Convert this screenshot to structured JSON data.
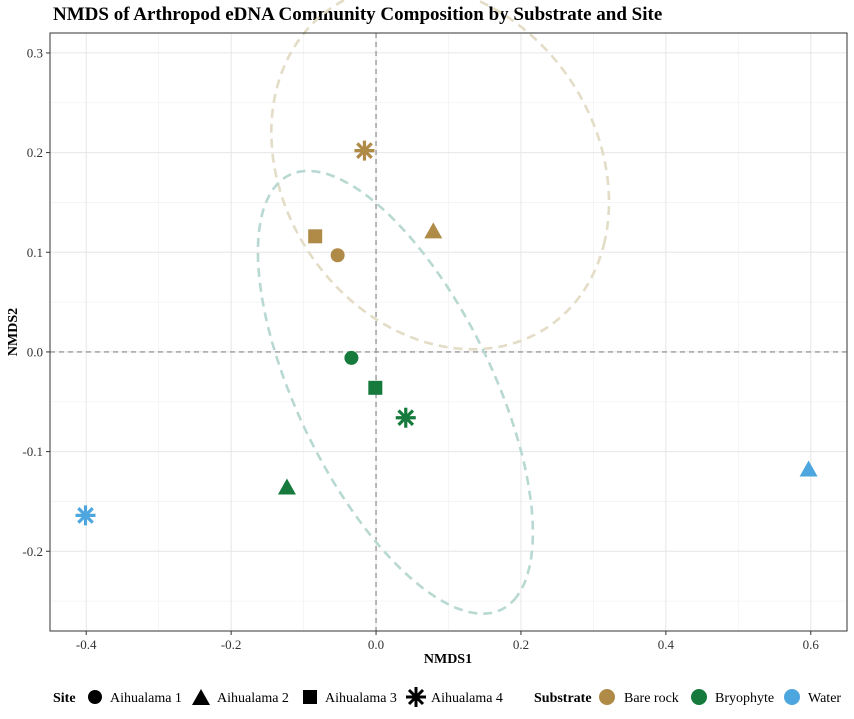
{
  "chart_data": {
    "type": "scatter",
    "title": "NMDS of Arthropod eDNA Community Composition by Substrate and Site",
    "xlabel": "NMDS1",
    "ylabel": "NMDS2",
    "xlim": [
      -0.45,
      0.65
    ],
    "ylim": [
      -0.28,
      0.32
    ],
    "x_ticks": [
      -0.4,
      -0.2,
      0.0,
      0.2,
      0.4,
      0.6
    ],
    "x_tick_labels": [
      "-0.4",
      "-0.2",
      "0.0",
      "0.2",
      "0.4",
      "0.6"
    ],
    "y_ticks": [
      -0.2,
      -0.1,
      0.0,
      0.1,
      0.2,
      0.3
    ],
    "y_tick_labels": [
      "-0.2",
      "-0.1",
      "0.0",
      "0.1",
      "0.2",
      "0.3"
    ],
    "grid": true,
    "reference_lines": {
      "x": 0.0,
      "y": 0.0
    },
    "legend_position": "bottom",
    "site_legend": {
      "title": "Site",
      "items": [
        {
          "label": "Aihualama 1",
          "shape": "circle"
        },
        {
          "label": "Aihualama 2",
          "shape": "triangle"
        },
        {
          "label": "Aihualama 3",
          "shape": "square"
        },
        {
          "label": "Aihualama 4",
          "shape": "asterisk"
        }
      ]
    },
    "substrate_legend": {
      "title": "Substrate",
      "items": [
        {
          "label": "Bare rock",
          "color": "#b08a47"
        },
        {
          "label": "Bryophyte",
          "color": "#157a3c"
        },
        {
          "label": "Water",
          "color": "#4da6de"
        }
      ]
    },
    "points": [
      {
        "substrate": "Bare rock",
        "site": "Aihualama 1",
        "x": -0.053,
        "y": 0.097
      },
      {
        "substrate": "Bare rock",
        "site": "Aihualama 2",
        "x": 0.079,
        "y": 0.121
      },
      {
        "substrate": "Bare rock",
        "site": "Aihualama 3",
        "x": -0.084,
        "y": 0.116
      },
      {
        "substrate": "Bare rock",
        "site": "Aihualama 4",
        "x": -0.016,
        "y": 0.202
      },
      {
        "substrate": "Bryophyte",
        "site": "Aihualama 1",
        "x": -0.034,
        "y": -0.006
      },
      {
        "substrate": "Bryophyte",
        "site": "Aihualama 2",
        "x": -0.123,
        "y": -0.136
      },
      {
        "substrate": "Bryophyte",
        "site": "Aihualama 3",
        "x": -0.001,
        "y": -0.036
      },
      {
        "substrate": "Bryophyte",
        "site": "Aihualama 4",
        "x": 0.041,
        "y": -0.066
      },
      {
        "substrate": "Water",
        "site": "Aihualama 2",
        "x": 0.597,
        "y": -0.118
      },
      {
        "substrate": "Water",
        "site": "Aihualama 4",
        "x": -0.401,
        "y": -0.164
      }
    ],
    "ellipses": [
      {
        "substrate": "Bare rock",
        "color": "#e3dcc6",
        "cx": 0.0885,
        "cy": 0.1855,
        "rx": 0.239,
        "ry": 0.175,
        "rotation_deg": -19
      },
      {
        "substrate": "Bryophyte",
        "color": "#b8d8d2",
        "cx": 0.0267,
        "cy": -0.0405,
        "rx": 0.265,
        "ry": 0.123,
        "rotation_deg": -52
      }
    ]
  }
}
